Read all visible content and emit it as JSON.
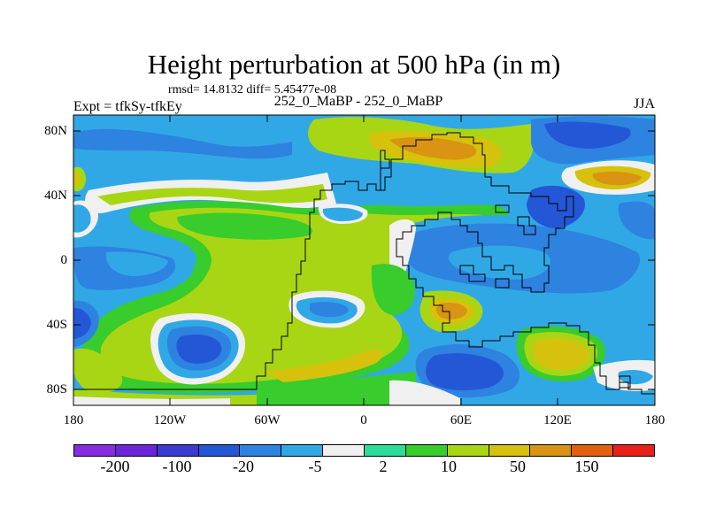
{
  "title": "Height perturbation at 500 hPa (in m)",
  "stats": "rmsd= 14.8132 diff= 5.45477e-08",
  "left_header": "Expt = tfkSy-tfkEy",
  "center_header": "252_0_MaBP - 252_0_MaBP",
  "right_header": "JJA",
  "axes": {
    "y_ticks": [
      "80N",
      "40N",
      "0",
      "40S",
      "80S"
    ],
    "x_ticks": [
      "180",
      "120W",
      "60W",
      "0",
      "60E",
      "120E",
      "180"
    ]
  },
  "colorbar": {
    "colors": [
      "#8a2be2",
      "#6a25d8",
      "#3b3bcf",
      "#2457d6",
      "#2e82e0",
      "#31a8e6",
      "#f0f0f0",
      "#2edc9a",
      "#38cc2c",
      "#a8d615",
      "#d6c20c",
      "#d89412",
      "#e35f12",
      "#e8221a"
    ],
    "labels": [
      "-200",
      "-100",
      "-20",
      "-5",
      "2",
      "10",
      "50",
      "150"
    ]
  }
}
